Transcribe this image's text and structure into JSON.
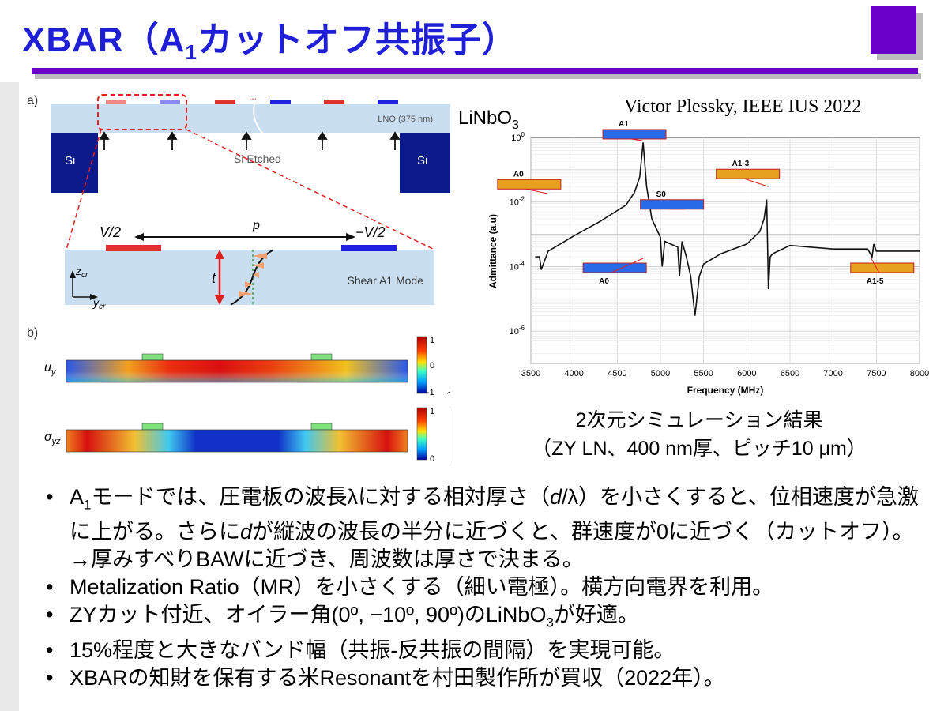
{
  "slide": {
    "title_pre": "XBAR（A",
    "title_sub": "1",
    "title_post": "カットオフ共振子）",
    "citation": "Victor Plessky, IEEE IUS 2022",
    "lnbo_label_main": "LiNbO",
    "lnbo_label_sub": "3"
  },
  "figure_left": {
    "panel_a_label": "a)",
    "panel_b_label": "b)",
    "lno_label": "LNO (375 nm)",
    "si_left": "Si",
    "si_right": "Si",
    "si_etched": "Si Etched",
    "dots": "...",
    "v_left": "V/2",
    "v_right": "−V/2",
    "pitch": "p",
    "thickness": "t",
    "shear_label": "Shear A1 Mode",
    "axis_z": "z",
    "axis_y": "y",
    "axis_sub": "cr",
    "uy_label": "u",
    "uy_sub": "y",
    "syz_label": "σ",
    "syz_sub": "yz",
    "cb1_top": "1",
    "cb1_mid": "0",
    "cb1_bot": "-1",
    "cb2_top": "1",
    "cb2_bot": "0"
  },
  "chart_data": {
    "type": "line",
    "title": "",
    "xlabel": "Frequency (MHz)",
    "ylabel": "Admittance (a.u)",
    "xlim": [
      3500,
      8000
    ],
    "ylim": [
      1e-07,
      1
    ],
    "y_scale": "log",
    "grid": true,
    "x_ticks": [
      3500,
      4000,
      4500,
      5000,
      5500,
      6000,
      6500,
      7000,
      7500,
      8000
    ],
    "y_tick_labels": [
      "10^0",
      "10^-2",
      "10^-4",
      "10^-6"
    ],
    "series": [
      {
        "x": [
          3550,
          3600,
          3620,
          3700,
          4000,
          4300,
          4600,
          4700,
          4760,
          4800,
          4840,
          4900,
          5000,
          5020,
          5050,
          5200,
          5220,
          5250,
          5300,
          5350,
          5400,
          5450,
          5500,
          5700,
          6000,
          6150,
          6200,
          6230,
          6250,
          6270,
          6300,
          6500,
          7000,
          7400,
          7450,
          7470,
          7500,
          8000
        ],
        "y": [
          0.0002,
          0.0002,
          8e-05,
          0.0003,
          0.0009,
          0.0025,
          0.008,
          0.02,
          0.06,
          0.7,
          0.03,
          0.003,
          0.0008,
          0.0001,
          0.0006,
          0.0004,
          5e-05,
          0.0006,
          0.0002,
          5e-05,
          3e-06,
          5e-05,
          0.00012,
          0.00025,
          0.0005,
          0.0012,
          0.003,
          0.012,
          2e-05,
          0.0002,
          0.00025,
          0.00045,
          0.00035,
          0.00035,
          0.0002,
          0.0005,
          0.0003,
          0.0003
        ]
      }
    ],
    "annotations": [
      "A1",
      "A0",
      "S0",
      "A1-3",
      "A0",
      "A1-5"
    ]
  },
  "captions": {
    "line1": "2次元シミュレーション結果",
    "line2": "（ZY LN、400 nm厚、ピッチ10 μm）"
  },
  "bullets": {
    "b1": {
      "t1": "A",
      "s1": "1",
      "t2": "モードでは、圧電板の波長λに対する相対厚さ（",
      "i1": "d",
      "t3": "/λ）を小さくすると、位相速度が急激に上がる。さらに",
      "i2": "d",
      "t4": "が縦波の波長の半分に近づくと、群速度が0に近づく（カットオフ）。→厚みすべりBAWに近づき、周波数は厚さで決まる。"
    },
    "b2": "Metalization Ratio（MR）を小さくする（細い電極）。横方向電界を利用。",
    "b3": {
      "t1": "ZYカット付近、オイラー角(0º, −10º, 90º)のLiNbO",
      "s1": "3",
      "t2": "が好適。"
    },
    "b4": "15%程度と大きなバンド幅（共振-反共振の間隔）を実現可能。",
    "b5": "XBARの知財を保有する米Resonantを村田製作所が買収（2022年）。"
  },
  "colors": {
    "title": "#1f1fd8",
    "accent": "#6a00c8",
    "electrode_pos": "#e03030",
    "electrode_neg": "#2020e0",
    "lno": "#c9def0",
    "si": "#0b1a8a"
  }
}
